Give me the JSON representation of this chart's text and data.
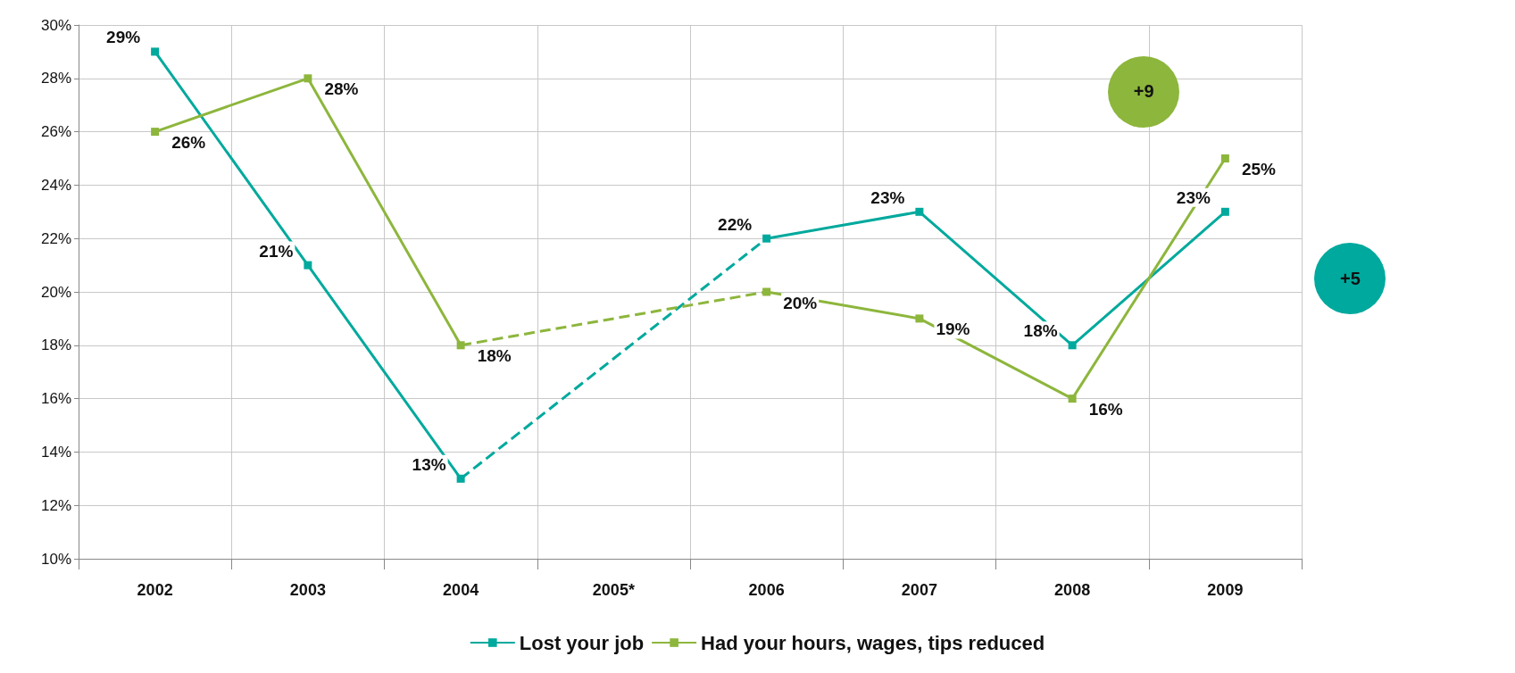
{
  "chart_data": {
    "type": "line",
    "categories": [
      "2002",
      "2003",
      "2004",
      "2005*",
      "2006",
      "2007",
      "2008",
      "2009"
    ],
    "series": [
      {
        "name": "Lost your job",
        "color": "#00a99d",
        "values": [
          29,
          21,
          13,
          null,
          22,
          23,
          18,
          23
        ],
        "value_labels": [
          "29%",
          "21%",
          "13%",
          null,
          "22%",
          "23%",
          "18%",
          "23%"
        ]
      },
      {
        "name": "Had your hours, wages, tips reduced",
        "color": "#8db63c",
        "values": [
          26,
          28,
          18,
          null,
          20,
          19,
          16,
          25
        ],
        "value_labels": [
          "26%",
          "28%",
          "18%",
          null,
          "20%",
          "19%",
          "16%",
          "25%"
        ]
      }
    ],
    "ylim": [
      10,
      30
    ],
    "yticks": [
      {
        "value": 10,
        "label": "10%"
      },
      {
        "value": 12,
        "label": "12%"
      },
      {
        "value": 14,
        "label": "14%"
      },
      {
        "value": 16,
        "label": "16%"
      },
      {
        "value": 18,
        "label": "18%"
      },
      {
        "value": 20,
        "label": "20%"
      },
      {
        "value": 22,
        "label": "22%"
      },
      {
        "value": 24,
        "label": "24%"
      },
      {
        "value": 26,
        "label": "26%"
      },
      {
        "value": 28,
        "label": "28%"
      },
      {
        "value": 30,
        "label": "30%"
      }
    ],
    "annotations": [
      "+9",
      "+5"
    ],
    "grid": true,
    "legend": "bottom",
    "marker": "square",
    "line_style": "solid"
  }
}
